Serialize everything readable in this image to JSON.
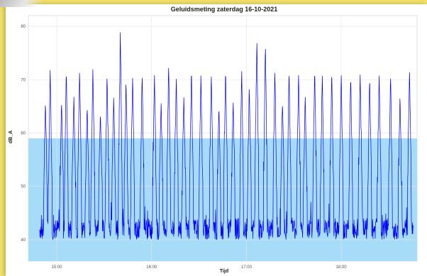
{
  "chart_data": {
    "type": "line",
    "title": "Geluidsmeting zaterdag 16-10-2021",
    "xlabel": "Tijd",
    "ylabel": "dB_A",
    "x_ticks": [
      "15:00",
      "16:00",
      "17:00",
      "18:00"
    ],
    "x_tick_hours": [
      15,
      16,
      17,
      18
    ],
    "xlim_hours": [
      14.7,
      18.8
    ],
    "y_ticks": [
      40,
      50,
      60,
      70,
      80
    ],
    "ylim": [
      36,
      82
    ],
    "grid": true,
    "legend": "none",
    "threshold_band": {
      "from": 36,
      "to": 59,
      "color": "#a6dcf7"
    },
    "series": [
      {
        "color": "#0000ff",
        "baseline": [
          40,
          44
        ],
        "peaks": [
          {
            "t": 14.88,
            "v": 66
          },
          {
            "t": 14.93,
            "v": 72
          },
          {
            "t": 15.05,
            "v": 66
          },
          {
            "t": 15.1,
            "v": 72
          },
          {
            "t": 15.18,
            "v": 67
          },
          {
            "t": 15.24,
            "v": 72
          },
          {
            "t": 15.32,
            "v": 65
          },
          {
            "t": 15.38,
            "v": 72
          },
          {
            "t": 15.46,
            "v": 64
          },
          {
            "t": 15.53,
            "v": 71
          },
          {
            "t": 15.6,
            "v": 67
          },
          {
            "t": 15.67,
            "v": 79
          },
          {
            "t": 15.73,
            "v": 70
          },
          {
            "t": 15.8,
            "v": 71
          },
          {
            "t": 15.9,
            "v": 71
          },
          {
            "t": 16.03,
            "v": 71
          },
          {
            "t": 16.1,
            "v": 66
          },
          {
            "t": 16.18,
            "v": 73
          },
          {
            "t": 16.26,
            "v": 71
          },
          {
            "t": 16.34,
            "v": 67
          },
          {
            "t": 16.42,
            "v": 72
          },
          {
            "t": 16.52,
            "v": 71
          },
          {
            "t": 16.63,
            "v": 71
          },
          {
            "t": 16.71,
            "v": 65
          },
          {
            "t": 16.78,
            "v": 72
          },
          {
            "t": 16.86,
            "v": 66
          },
          {
            "t": 16.95,
            "v": 72
          },
          {
            "t": 17.03,
            "v": 69
          },
          {
            "t": 17.11,
            "v": 78
          },
          {
            "t": 17.2,
            "v": 77
          },
          {
            "t": 17.3,
            "v": 72
          },
          {
            "t": 17.38,
            "v": 66
          },
          {
            "t": 17.45,
            "v": 72
          },
          {
            "t": 17.55,
            "v": 71
          },
          {
            "t": 17.62,
            "v": 67
          },
          {
            "t": 17.72,
            "v": 72
          },
          {
            "t": 17.8,
            "v": 71
          },
          {
            "t": 17.9,
            "v": 72
          },
          {
            "t": 18.0,
            "v": 71
          },
          {
            "t": 18.1,
            "v": 71
          },
          {
            "t": 18.2,
            "v": 71
          },
          {
            "t": 18.3,
            "v": 71
          },
          {
            "t": 18.4,
            "v": 71
          },
          {
            "t": 18.52,
            "v": 71
          },
          {
            "t": 18.62,
            "v": 67
          },
          {
            "t": 18.72,
            "v": 72
          }
        ]
      }
    ]
  }
}
